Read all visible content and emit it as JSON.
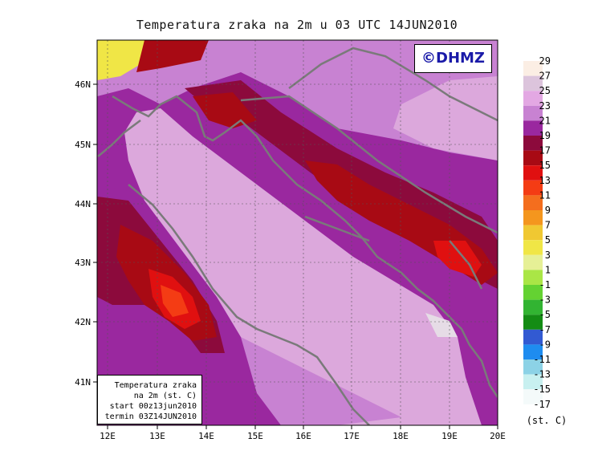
{
  "title": "Temperatura zraka na 2m u 03 UTC 14JUN2010",
  "copyright": "©DHMZ",
  "info_box": {
    "line1": "Temperatura zraka",
    "line2": "na 2m (st. C)",
    "line3": "start 00z13jun2010",
    "line4": "termin 03Z14JUN2010"
  },
  "axes": {
    "lon_ticks": [
      "12E",
      "13E",
      "14E",
      "15E",
      "16E",
      "17E",
      "18E",
      "19E",
      "20E"
    ],
    "lat_ticks": [
      "46N",
      "45N",
      "44N",
      "43N",
      "42N",
      "41N"
    ]
  },
  "legend": {
    "unit": "(st. C)",
    "labels": [
      "29",
      "27",
      "25",
      "23",
      "21",
      "19",
      "17",
      "15",
      "13",
      "11",
      "9",
      "7",
      "5",
      "3",
      "1",
      "-1",
      "-3",
      "-5",
      "-7",
      "-9",
      "-11",
      "-13",
      "-15",
      "-17"
    ],
    "colors": [
      "#fbeee4",
      "#dcc4dc",
      "#e3a8e3",
      "#c882d2",
      "#9a289f",
      "#8c0a3c",
      "#a80a14",
      "#e01010",
      "#f43c14",
      "#f46e1e",
      "#f4961e",
      "#f0c832",
      "#f0e646",
      "#e6f096",
      "#aae646",
      "#64d232",
      "#32b432",
      "#148c14",
      "#325ad2",
      "#1e8cf0",
      "#8cd2e6",
      "#c8f0f0",
      "#f4fafa"
    ],
    "colors_note": "23 swatches, top to bottom"
  },
  "map": {
    "background_colors": {
      "sea": "#dca8dc",
      "coast": "#c882d2",
      "warm": "#9a289f",
      "hot": "#8c0a3c",
      "hotter": "#a80a14",
      "hottest": "#e01010",
      "extreme": "#f43c14",
      "coastline": "#7a7a7a"
    }
  }
}
